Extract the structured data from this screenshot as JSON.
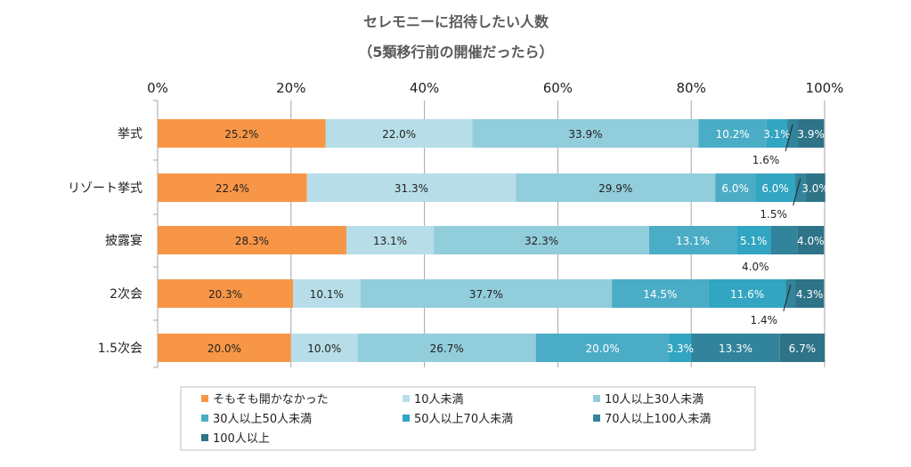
{
  "chart_data": {
    "type": "bar",
    "orientation": "horizontal",
    "stacked": "percent",
    "title": "セレモニーに招待したい人数",
    "subtitle": "（5類移行前の開催だったら）",
    "categories": [
      "挙式",
      "リゾート挙式",
      "披露宴",
      "2次会",
      "1.5次会"
    ],
    "x_ticks": [
      "0%",
      "20%",
      "40%",
      "60%",
      "80%",
      "100%"
    ],
    "xlim": [
      0,
      100
    ],
    "grid": true,
    "legend_position": "bottom",
    "series": [
      {
        "name": "そもそも開かなかった",
        "color": "#F79646",
        "values": [
          25.2,
          22.4,
          28.3,
          20.3,
          20.0
        ],
        "labels": [
          "25.2%",
          "22.4%",
          "28.3%",
          "20.3%",
          "20.0%"
        ]
      },
      {
        "name": "10人未満",
        "color": "#B7DEE8",
        "values": [
          22.0,
          31.3,
          13.1,
          10.1,
          10.0
        ],
        "labels": [
          "22.0%",
          "31.3%",
          "13.1%",
          "10.1%",
          "10.0%"
        ]
      },
      {
        "name": "10人以上30人未満",
        "color": "#92CDDC",
        "values": [
          33.9,
          29.9,
          32.3,
          37.7,
          26.7
        ],
        "labels": [
          "33.9%",
          "29.9%",
          "32.3%",
          "37.7%",
          "26.7%"
        ]
      },
      {
        "name": "30人以上50人未満",
        "color": "#4BACC6",
        "values": [
          10.2,
          6.0,
          13.1,
          14.5,
          20.0
        ],
        "labels": [
          "10.2%",
          "6.0%",
          "13.1%",
          "14.5%",
          "20.0%"
        ]
      },
      {
        "name": "50人以上70人未満",
        "color": "#31A5C2",
        "values": [
          3.1,
          6.0,
          5.1,
          11.6,
          3.3
        ],
        "labels": [
          "3.1%",
          "6.0%",
          "5.1%",
          "11.6%",
          "3.3%"
        ]
      },
      {
        "name": "70人以上100人未満",
        "color": "#31849B",
        "values": [
          1.6,
          1.5,
          4.0,
          1.4,
          13.3
        ],
        "labels": [
          "1.6%",
          "1.5%",
          "4.0%",
          "1.4%",
          "13.3%"
        ]
      },
      {
        "name": "100人以上",
        "color": "#2E7387",
        "values": [
          3.9,
          3.0,
          4.0,
          4.3,
          6.7
        ],
        "labels": [
          "3.9%",
          "3.0%",
          "4.0%",
          "4.3%",
          "6.7%"
        ]
      }
    ]
  }
}
